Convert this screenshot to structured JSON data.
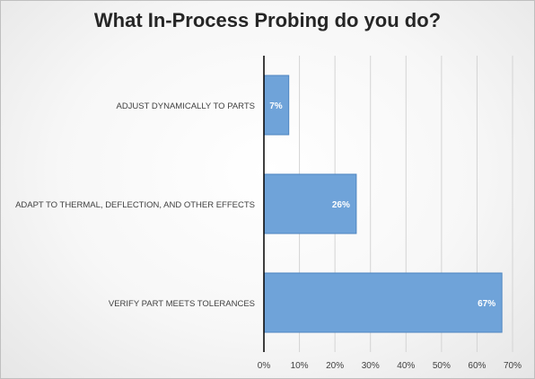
{
  "chart_data": {
    "type": "bar",
    "orientation": "horizontal",
    "title": "What In-Process Probing do you do?",
    "categories": [
      "ADJUST DYNAMICALLY TO PARTS",
      "ADAPT TO THERMAL, DEFLECTION, AND OTHER EFFECTS",
      "VERIFY PART MEETS TOLERANCES"
    ],
    "values": [
      7,
      26,
      67
    ],
    "data_labels": [
      "7%",
      "26%",
      "67%"
    ],
    "xlim": [
      0,
      70
    ],
    "x_ticks": [
      0,
      10,
      20,
      30,
      40,
      50,
      60,
      70
    ],
    "x_tick_labels": [
      "0%",
      "10%",
      "20%",
      "30%",
      "40%",
      "50%",
      "60%",
      "70%"
    ],
    "xlabel": "",
    "ylabel": "",
    "grid": "vertical",
    "legend": "none",
    "bar_color": "#6fa3d9",
    "bar_border_color": "#4f86c1",
    "grid_color": "#d4d4d4",
    "axis_color": "#000000",
    "label_color": "#404040",
    "data_label_color": "#ffffff"
  }
}
